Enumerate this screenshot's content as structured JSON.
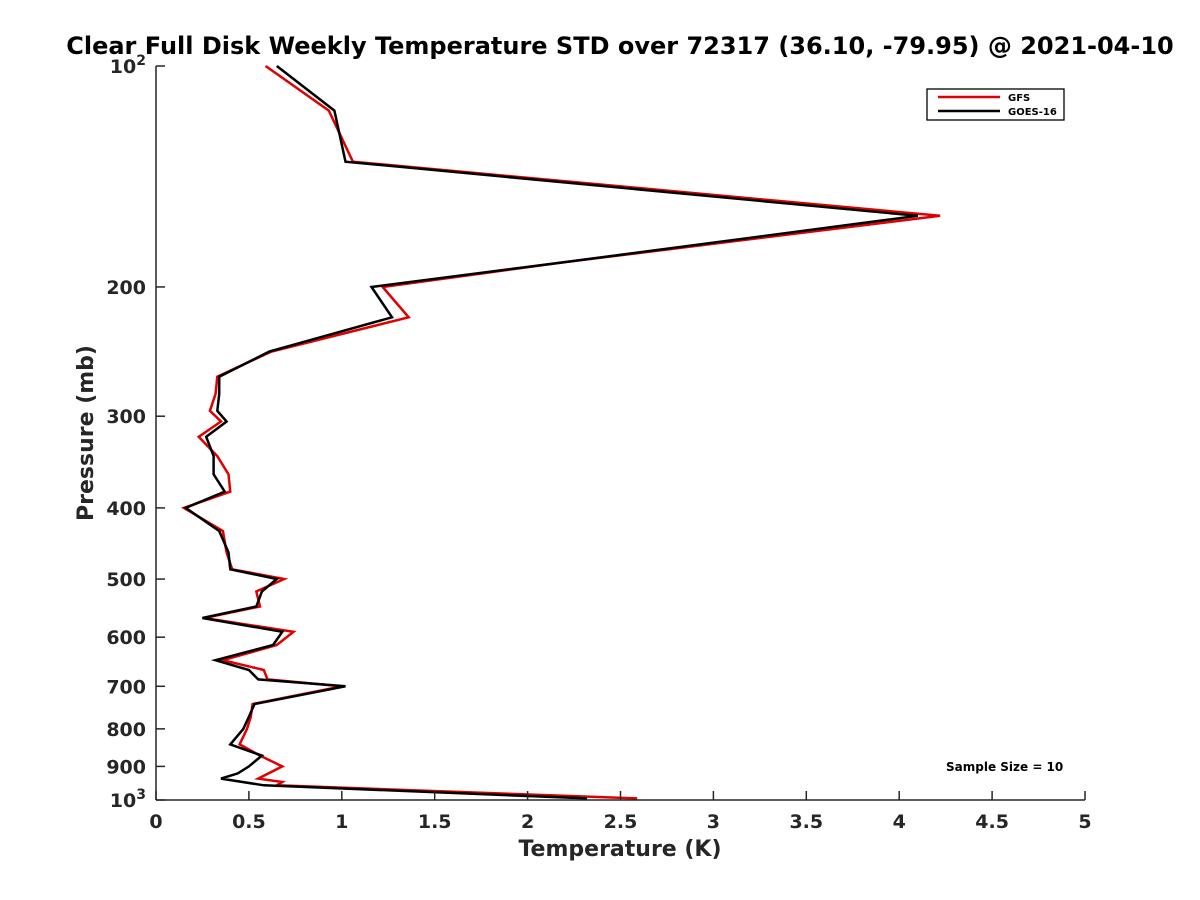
{
  "chart_data": {
    "type": "line",
    "title": "Clear Full Disk Weekly Temperature STD over 72317 (36.10, -79.95) @ 2021-04-10",
    "xlabel": "Temperature (K)",
    "ylabel": "Pressure (mb)",
    "xlim": [
      0,
      5
    ],
    "ylim": [
      100,
      1000
    ],
    "y_scale": "log",
    "y_reversed": true,
    "x_ticks": [
      "0",
      "0.5",
      "1",
      "1.5",
      "2",
      "2.5",
      "3",
      "3.5",
      "4",
      "4.5",
      "5"
    ],
    "y_ticks": [
      {
        "value": 100,
        "base": "10",
        "exp": "2"
      },
      {
        "value": 200,
        "label": "200"
      },
      {
        "value": 300,
        "label": "300"
      },
      {
        "value": 400,
        "label": "400"
      },
      {
        "value": 500,
        "label": "500"
      },
      {
        "value": 600,
        "label": "600"
      },
      {
        "value": 700,
        "label": "700"
      },
      {
        "value": 800,
        "label": "800"
      },
      {
        "value": 900,
        "label": "900"
      },
      {
        "value": 1000,
        "base": "10",
        "exp": "3"
      }
    ],
    "grid": false,
    "legend_position": "top-right",
    "annotation": "Sample Size = 10",
    "series": [
      {
        "name": "GFS",
        "color": "#e00000",
        "points": [
          [
            0.59,
            100
          ],
          [
            0.93,
            115
          ],
          [
            1.06,
            135
          ],
          [
            4.22,
            160
          ],
          [
            2.2,
            185
          ],
          [
            1.22,
            200
          ],
          [
            1.36,
            220
          ],
          [
            0.62,
            245
          ],
          [
            0.33,
            265
          ],
          [
            0.32,
            280
          ],
          [
            0.29,
            295
          ],
          [
            0.35,
            305
          ],
          [
            0.23,
            320
          ],
          [
            0.33,
            340
          ],
          [
            0.39,
            360
          ],
          [
            0.4,
            380
          ],
          [
            0.15,
            400
          ],
          [
            0.36,
            430
          ],
          [
            0.38,
            460
          ],
          [
            0.41,
            485
          ],
          [
            0.69,
            500
          ],
          [
            0.54,
            520
          ],
          [
            0.56,
            545
          ],
          [
            0.26,
            565
          ],
          [
            0.74,
            590
          ],
          [
            0.65,
            615
          ],
          [
            0.36,
            645
          ],
          [
            0.58,
            665
          ],
          [
            0.6,
            685
          ],
          [
            1.0,
            700
          ],
          [
            0.52,
            740
          ],
          [
            0.51,
            770
          ],
          [
            0.49,
            800
          ],
          [
            0.45,
            840
          ],
          [
            0.56,
            870
          ],
          [
            0.68,
            900
          ],
          [
            0.55,
            935
          ],
          [
            0.68,
            945
          ],
          [
            0.65,
            955
          ],
          [
            2.59,
            995
          ]
        ]
      },
      {
        "name": "GOES-16",
        "color": "#000000",
        "points": [
          [
            0.65,
            100
          ],
          [
            0.96,
            115
          ],
          [
            1.02,
            135
          ],
          [
            4.1,
            160
          ],
          [
            2.2,
            185
          ],
          [
            1.16,
            200
          ],
          [
            1.27,
            220
          ],
          [
            0.61,
            245
          ],
          [
            0.34,
            265
          ],
          [
            0.34,
            280
          ],
          [
            0.33,
            295
          ],
          [
            0.38,
            305
          ],
          [
            0.27,
            320
          ],
          [
            0.31,
            340
          ],
          [
            0.31,
            360
          ],
          [
            0.37,
            380
          ],
          [
            0.16,
            400
          ],
          [
            0.34,
            430
          ],
          [
            0.39,
            460
          ],
          [
            0.4,
            485
          ],
          [
            0.65,
            500
          ],
          [
            0.57,
            520
          ],
          [
            0.54,
            545
          ],
          [
            0.25,
            565
          ],
          [
            0.68,
            590
          ],
          [
            0.63,
            615
          ],
          [
            0.32,
            645
          ],
          [
            0.5,
            665
          ],
          [
            0.55,
            685
          ],
          [
            1.02,
            700
          ],
          [
            0.53,
            740
          ],
          [
            0.5,
            770
          ],
          [
            0.47,
            800
          ],
          [
            0.4,
            840
          ],
          [
            0.57,
            870
          ],
          [
            0.5,
            900
          ],
          [
            0.44,
            920
          ],
          [
            0.35,
            935
          ],
          [
            0.58,
            955
          ],
          [
            2.32,
            995
          ]
        ]
      }
    ]
  }
}
